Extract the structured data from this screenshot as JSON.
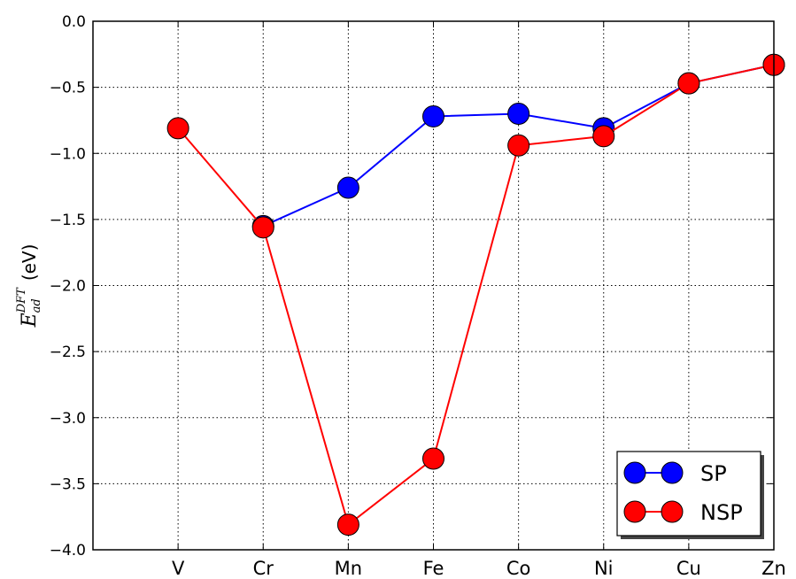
{
  "chart_data": {
    "type": "line",
    "categories": [
      "V",
      "Cr",
      "Mn",
      "Fe",
      "Co",
      "Ni",
      "Cu",
      "Zn"
    ],
    "x": [
      1,
      2,
      3,
      4,
      5,
      6,
      7,
      8
    ],
    "series": [
      {
        "name": "SP",
        "color": "#0000ff",
        "values": [
          null,
          -1.55,
          -1.26,
          -0.72,
          -0.7,
          -0.81,
          -0.47,
          -0.33
        ]
      },
      {
        "name": "NSP",
        "color": "#ff0000",
        "values": [
          -0.81,
          -1.56,
          -3.81,
          -3.31,
          -0.94,
          -0.87,
          -0.47,
          -0.33
        ]
      }
    ],
    "xlim": [
      0,
      8
    ],
    "ylim": [
      -4.0,
      0.0
    ],
    "yticks": [
      0.0,
      -0.5,
      -1.0,
      -1.5,
      -2.0,
      -2.5,
      -3.0,
      -3.5,
      -4.0
    ],
    "ytick_labels": [
      "0.0",
      "−0.5",
      "−1.0",
      "−1.5",
      "−2.0",
      "−2.5",
      "−3.0",
      "−3.5",
      "−4.0"
    ],
    "ylabel": {
      "symbol": "E",
      "subscript": "ad",
      "superscript": "DFT",
      "unit": "(eV)"
    },
    "xlabel": "",
    "grid": true,
    "legend_position": "bottom-right"
  }
}
